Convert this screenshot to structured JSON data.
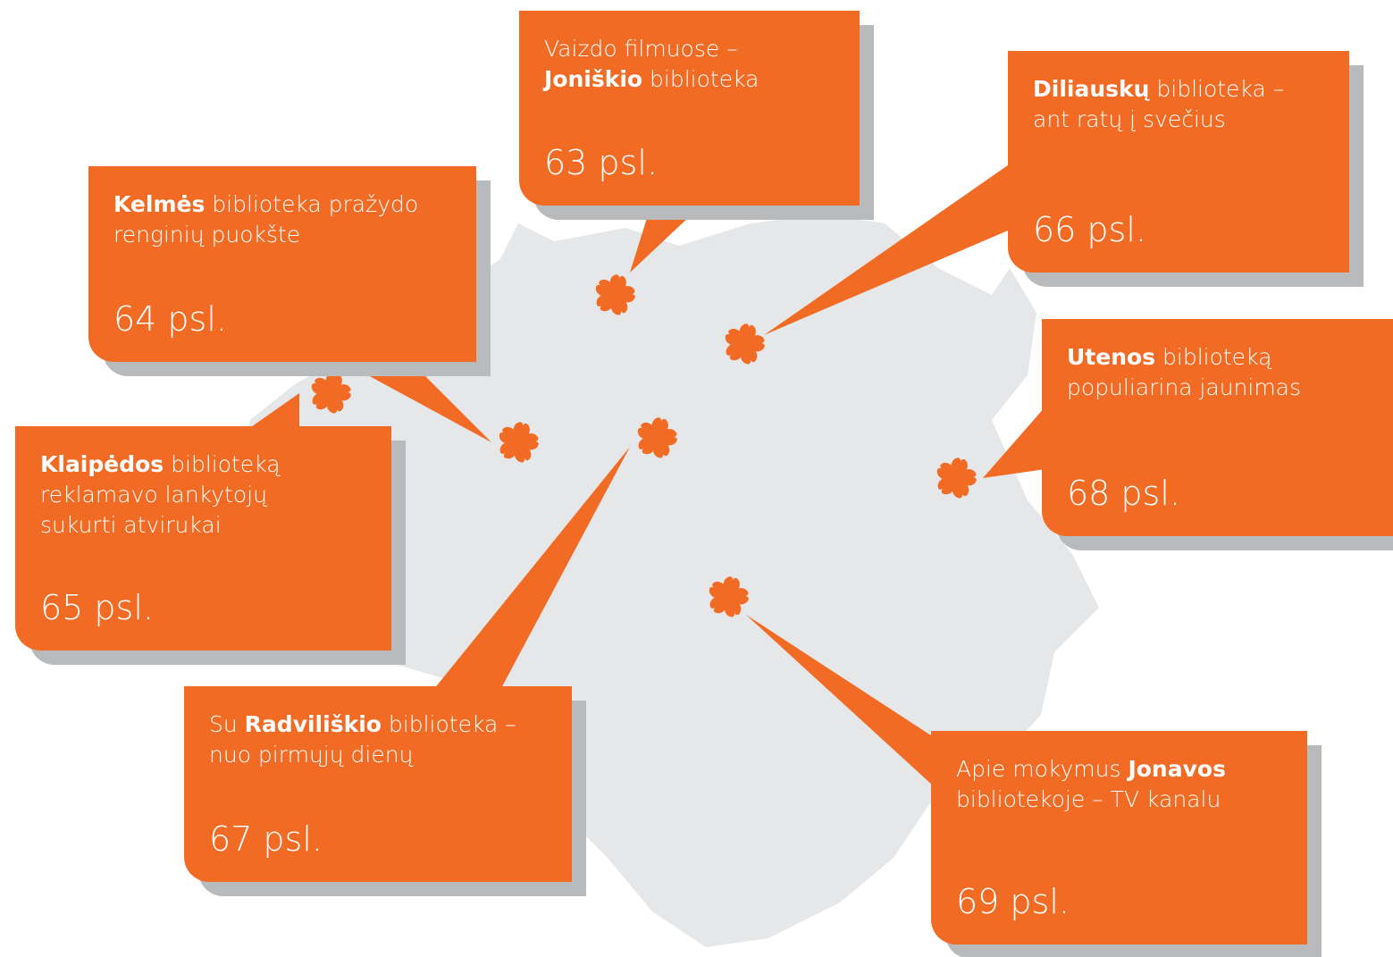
{
  "callouts": [
    {
      "lines": [
        [
          {
            "text": "Vaizdo filmuose –"
          }
        ],
        [
          {
            "text": "Joniškio",
            "bold": true
          },
          {
            "text": " biblioteka"
          }
        ]
      ],
      "page": "63 psl."
    },
    {
      "lines": [
        [
          {
            "text": "Diliauskų",
            "bold": true
          },
          {
            "text": " biblioteka –"
          }
        ],
        [
          {
            "text": "ant ratų į svečius"
          }
        ]
      ],
      "page": "66 psl."
    },
    {
      "lines": [
        [
          {
            "text": "Kelmės",
            "bold": true
          },
          {
            "text": " biblioteka pražydo"
          }
        ],
        [
          {
            "text": "renginių puokšte"
          }
        ]
      ],
      "page": "64 psl."
    },
    {
      "lines": [
        [
          {
            "text": "Klaipėdos",
            "bold": true
          },
          {
            "text": " biblioteką"
          }
        ],
        [
          {
            "text": "reklamavo lankytojų"
          }
        ],
        [
          {
            "text": "sukurti atvirukai"
          }
        ]
      ],
      "page": "65 psl."
    },
    {
      "lines": [
        [
          {
            "text": "Utenos",
            "bold": true
          },
          {
            "text": " biblioteką"
          }
        ],
        [
          {
            "text": "populiarina jaunimas"
          }
        ]
      ],
      "page": "68 psl."
    },
    {
      "lines": [
        [
          {
            "text": "Su "
          },
          {
            "text": "Radviliškio",
            "bold": true
          },
          {
            "text": " biblioteka –"
          }
        ],
        [
          {
            "text": "nuo pirmųjų dienų"
          }
        ]
      ],
      "page": "67 psl."
    },
    {
      "lines": [
        [
          {
            "text": "Apie mokymus "
          },
          {
            "text": "Jonavos",
            "bold": true
          }
        ],
        [
          {
            "text": "bibliotekoje – TV kanalu"
          }
        ]
      ],
      "page": "69 psl."
    }
  ]
}
